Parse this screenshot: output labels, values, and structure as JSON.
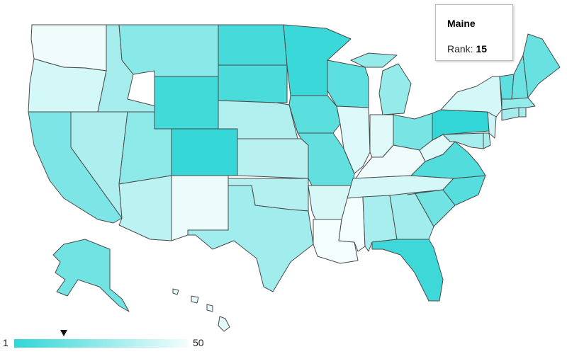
{
  "tooltip": {
    "state": "Maine",
    "rank_label": "Rank:",
    "rank_value": "15"
  },
  "legend": {
    "min_label": "1",
    "max_label": "50",
    "min": 1,
    "max": 50,
    "marker_value": 15,
    "color_low": "#32d6d6",
    "color_high": "#f4fdfd"
  },
  "states": [
    {
      "name": "Washington",
      "rank": 49
    },
    {
      "name": "Oregon",
      "rank": 42
    },
    {
      "name": "California",
      "rank": 20
    },
    {
      "name": "Nevada",
      "rank": 32
    },
    {
      "name": "Idaho",
      "rank": 30
    },
    {
      "name": "Montana",
      "rank": 23
    },
    {
      "name": "Wyoming",
      "rank": 5
    },
    {
      "name": "Utah",
      "rank": 24
    },
    {
      "name": "Arizona",
      "rank": 36
    },
    {
      "name": "Colorado",
      "rank": 2
    },
    {
      "name": "New Mexico",
      "rank": 48
    },
    {
      "name": "North Dakota",
      "rank": 6
    },
    {
      "name": "South Dakota",
      "rank": 7
    },
    {
      "name": "Nebraska",
      "rank": 33
    },
    {
      "name": "Kansas",
      "rank": 35
    },
    {
      "name": "Oklahoma",
      "rank": 34
    },
    {
      "name": "Texas",
      "rank": 29
    },
    {
      "name": "Minnesota",
      "rank": 3
    },
    {
      "name": "Iowa",
      "rank": 11
    },
    {
      "name": "Missouri",
      "rank": 13
    },
    {
      "name": "Arkansas",
      "rank": 43
    },
    {
      "name": "Louisiana",
      "rank": 50
    },
    {
      "name": "Wisconsin",
      "rank": 12
    },
    {
      "name": "Illinois",
      "rank": 44
    },
    {
      "name": "Michigan",
      "rank": 26
    },
    {
      "name": "Indiana",
      "rank": 45
    },
    {
      "name": "Ohio",
      "rank": 19
    },
    {
      "name": "Kentucky",
      "rank": 49
    },
    {
      "name": "Tennessee",
      "rank": 42
    },
    {
      "name": "Mississippi",
      "rank": 50
    },
    {
      "name": "Alabama",
      "rank": 31
    },
    {
      "name": "Georgia",
      "rank": 29
    },
    {
      "name": "Florida",
      "rank": 4
    },
    {
      "name": "South Carolina",
      "rank": 17
    },
    {
      "name": "North Carolina",
      "rank": 10
    },
    {
      "name": "Virginia",
      "rank": 9
    },
    {
      "name": "West Virginia",
      "rank": 45
    },
    {
      "name": "Pennsylvania",
      "rank": 1
    },
    {
      "name": "New York",
      "rank": 42
    },
    {
      "name": "Maryland",
      "rank": 30
    },
    {
      "name": "Delaware",
      "rank": 30
    },
    {
      "name": "New Jersey",
      "rank": 40
    },
    {
      "name": "Connecticut",
      "rank": 30
    },
    {
      "name": "Rhode Island",
      "rank": 30
    },
    {
      "name": "Massachusetts",
      "rank": 26
    },
    {
      "name": "Vermont",
      "rank": 12
    },
    {
      "name": "New Hampshire",
      "rank": 16
    },
    {
      "name": "Maine",
      "rank": 15
    },
    {
      "name": "Alaska",
      "rank": 17
    },
    {
      "name": "Hawaii",
      "rank": 46
    }
  ]
}
